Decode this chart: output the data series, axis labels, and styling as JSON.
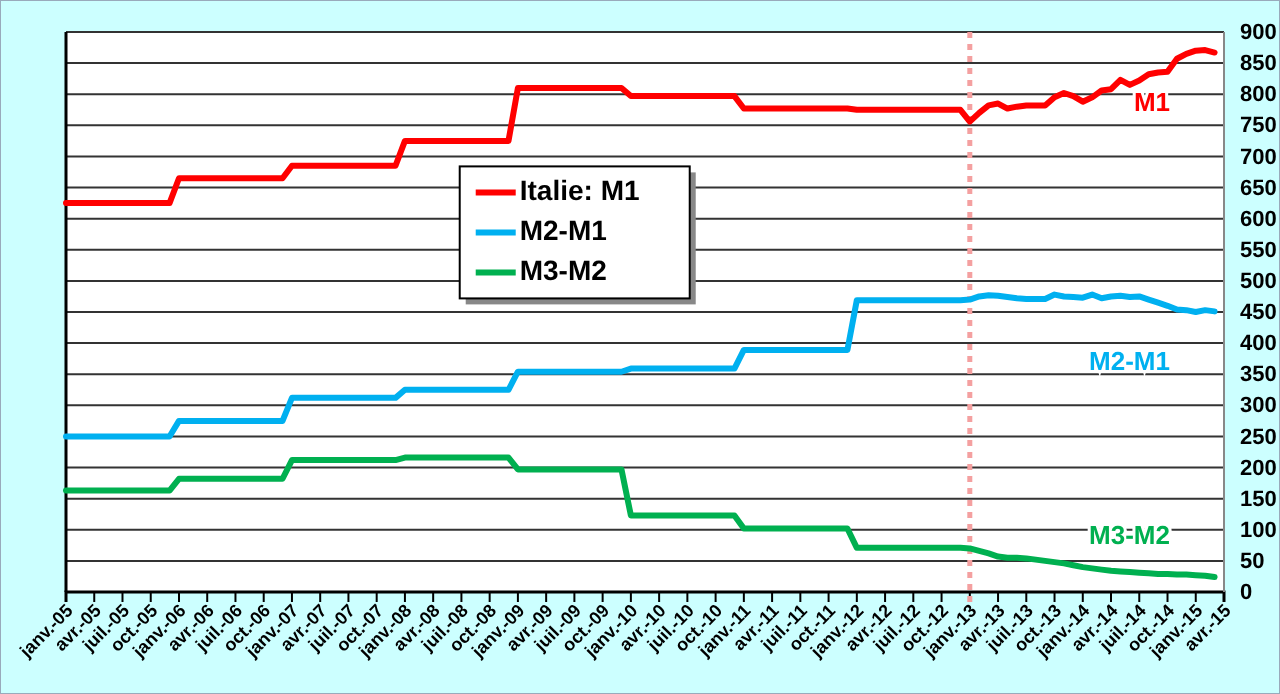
{
  "chart_data": {
    "type": "line",
    "categories": [
      "janv.-05",
      null,
      null,
      "avr.-05",
      null,
      null,
      "juil.-05",
      null,
      null,
      "oct.-05",
      null,
      null,
      "janv.-06",
      null,
      null,
      "avr.-06",
      null,
      null,
      "juil.-06",
      null,
      null,
      "oct.-06",
      null,
      null,
      "janv.-07",
      null,
      null,
      "avr.-07",
      null,
      null,
      "juil.-07",
      null,
      null,
      "oct.-07",
      null,
      null,
      "janv.-08",
      null,
      null,
      "avr.-08",
      null,
      null,
      "juil.-08",
      null,
      null,
      "oct.-08",
      null,
      null,
      "janv.-09",
      null,
      null,
      "avr.-09",
      null,
      null,
      "juil.-09",
      null,
      null,
      "oct.-09",
      null,
      null,
      "janv.-10",
      null,
      null,
      "avr.-10",
      null,
      null,
      "juil.-10",
      null,
      null,
      "oct.-10",
      null,
      null,
      "janv.-11",
      null,
      null,
      "avr.-11",
      null,
      null,
      "juil.-11",
      null,
      null,
      "oct.-11",
      null,
      null,
      "janv.-12",
      null,
      null,
      "avr.-12",
      null,
      null,
      "juil.-12",
      null,
      null,
      "oct.-12",
      null,
      null,
      "janv.-13",
      null,
      null,
      "avr.-13",
      null,
      null,
      "juil.-13",
      null,
      null,
      "oct.-13",
      null,
      null,
      "janv.-14",
      null,
      null,
      "avr.-14",
      null,
      null,
      "juil.-14",
      null,
      null,
      "oct.-14",
      null,
      null,
      "janv.-15",
      null,
      null,
      "avr.-15"
    ],
    "series": [
      {
        "name": "Italie: M1",
        "color": "#ff0000",
        "values": [
          625,
          625,
          625,
          625,
          625,
          625,
          625,
          625,
          625,
          625,
          625,
          625,
          665,
          665,
          665,
          665,
          665,
          665,
          665,
          665,
          665,
          665,
          665,
          665,
          685,
          685,
          685,
          685,
          685,
          685,
          685,
          685,
          685,
          685,
          685,
          685,
          725,
          725,
          725,
          725,
          725,
          725,
          725,
          725,
          725,
          725,
          725,
          725,
          810,
          810,
          810,
          810,
          810,
          810,
          810,
          810,
          810,
          810,
          810,
          810,
          797,
          797,
          797,
          797,
          797,
          797,
          797,
          797,
          797,
          797,
          797,
          797,
          777,
          777,
          777,
          777,
          777,
          777,
          777,
          777,
          777,
          777,
          777,
          777,
          775,
          775,
          775,
          775,
          775,
          775,
          775,
          775,
          775,
          775,
          775,
          775,
          756,
          770,
          782,
          785,
          777,
          780,
          782,
          782,
          782,
          795,
          802,
          797,
          788,
          795,
          806,
          808,
          823,
          815,
          822,
          832,
          835,
          836,
          857,
          865,
          870,
          871,
          867,
          null
        ]
      },
      {
        "name": "M2-M1",
        "color": "#00b0f0",
        "values": [
          250,
          250,
          250,
          250,
          250,
          250,
          250,
          250,
          250,
          250,
          250,
          250,
          275,
          275,
          275,
          275,
          275,
          275,
          275,
          275,
          275,
          275,
          275,
          275,
          312,
          312,
          312,
          312,
          312,
          312,
          312,
          312,
          312,
          312,
          312,
          312,
          325,
          325,
          325,
          325,
          325,
          325,
          325,
          325,
          325,
          325,
          325,
          325,
          354,
          354,
          354,
          354,
          354,
          354,
          354,
          354,
          354,
          354,
          354,
          354,
          359,
          359,
          359,
          359,
          359,
          359,
          359,
          359,
          359,
          359,
          359,
          359,
          389,
          389,
          389,
          389,
          389,
          389,
          389,
          389,
          389,
          389,
          389,
          389,
          469,
          469,
          469,
          469,
          469,
          469,
          469,
          469,
          469,
          469,
          469,
          469,
          470,
          475,
          477,
          476,
          474,
          472,
          471,
          471,
          471,
          478,
          475,
          474,
          473,
          478,
          472,
          475,
          476,
          474,
          475,
          470,
          465,
          460,
          454,
          453,
          450,
          453,
          451,
          null
        ]
      },
      {
        "name": "M3-M2",
        "color": "#00b050",
        "values": [
          163,
          163,
          163,
          163,
          163,
          163,
          163,
          163,
          163,
          163,
          163,
          163,
          182,
          182,
          182,
          182,
          182,
          182,
          182,
          182,
          182,
          182,
          182,
          182,
          212,
          212,
          212,
          212,
          212,
          212,
          212,
          212,
          212,
          212,
          212,
          212,
          216,
          216,
          216,
          216,
          216,
          216,
          216,
          216,
          216,
          216,
          216,
          216,
          197,
          197,
          197,
          197,
          197,
          197,
          197,
          197,
          197,
          197,
          197,
          197,
          123,
          123,
          123,
          123,
          123,
          123,
          123,
          123,
          123,
          123,
          123,
          123,
          102,
          102,
          102,
          102,
          102,
          102,
          102,
          102,
          102,
          102,
          102,
          102,
          71,
          71,
          71,
          71,
          71,
          71,
          71,
          71,
          71,
          71,
          71,
          71,
          70,
          66,
          62,
          57,
          55,
          55,
          54,
          52,
          50,
          48,
          46,
          43,
          40,
          38,
          36,
          34,
          33,
          32,
          31,
          30,
          29,
          29,
          28,
          28,
          27,
          26,
          24,
          null
        ]
      }
    ],
    "ylim": [
      0,
      900
    ],
    "yticks": [
      0,
      50,
      100,
      150,
      200,
      250,
      300,
      350,
      400,
      450,
      500,
      550,
      600,
      650,
      700,
      750,
      800,
      850,
      900
    ],
    "grid": "y",
    "legend": "top left",
    "marker": "none",
    "line_style": "solid",
    "annotations": [
      "M1",
      "M2-M1",
      "M3-M2"
    ],
    "ref_lines": [
      {
        "axis": "x",
        "value": "janv.-13",
        "color": "#f4a0a0",
        "line_style": "dotted"
      }
    ]
  }
}
